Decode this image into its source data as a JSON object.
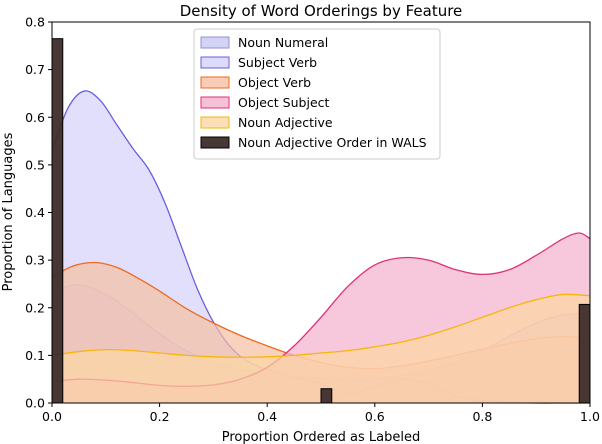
{
  "chart_data": {
    "type": "area",
    "title": "Density of Word Orderings by Feature",
    "xlabel": "Proportion Ordered as Labeled",
    "ylabel": "Proportion of Languages",
    "xlim": [
      0,
      1
    ],
    "ylim": [
      0,
      0.8
    ],
    "xticks": [
      "0.0",
      "0.2",
      "0.4",
      "0.6",
      "0.8",
      "1.0"
    ],
    "yticks": [
      "0.0",
      "0.1",
      "0.2",
      "0.3",
      "0.4",
      "0.5",
      "0.6",
      "0.7",
      "0.8"
    ],
    "grid": false,
    "legend_position": "top-center",
    "series": [
      {
        "name": "Noun Numeral",
        "kind": "density",
        "fill": "#c8c8f4",
        "stroke": "#9a8fd0",
        "x": [
          0,
          0.05,
          0.1,
          0.15,
          0.2,
          0.25,
          0.3,
          0.35,
          0.4,
          0.45,
          0.5,
          0.55,
          0.6,
          0.65,
          0.7,
          0.75,
          0.8,
          0.85,
          0.9,
          0.95,
          1.0
        ],
        "y": [
          0.235,
          0.248,
          0.228,
          0.19,
          0.145,
          0.11,
          0.085,
          0.07,
          0.06,
          0.055,
          0.052,
          0.05,
          0.052,
          0.058,
          0.068,
          0.085,
          0.11,
          0.14,
          0.168,
          0.185,
          0.188
        ]
      },
      {
        "name": "Subject Verb",
        "kind": "density",
        "fill": "#d4d2fb",
        "stroke": "#6a5fe0",
        "x": [
          0,
          0.03,
          0.06,
          0.09,
          0.12,
          0.15,
          0.18,
          0.21,
          0.24,
          0.27,
          0.3,
          0.33,
          0.36,
          0.4,
          0.45,
          0.5,
          0.55,
          0.6,
          0.65,
          0.7,
          0.75,
          0.8,
          0.85,
          0.9,
          0.95,
          1.0
        ],
        "y": [
          0.53,
          0.62,
          0.655,
          0.635,
          0.585,
          0.535,
          0.49,
          0.42,
          0.33,
          0.24,
          0.17,
          0.12,
          0.09,
          0.07,
          0.055,
          0.04,
          0.02,
          0.035,
          0.05,
          0.04,
          0.015,
          0.005,
          0.002,
          0.0,
          0.0,
          0.0
        ]
      },
      {
        "name": "Object Verb",
        "kind": "density",
        "fill": "#f7bfa2",
        "stroke": "#ee6a20",
        "x": [
          0,
          0.04,
          0.08,
          0.12,
          0.16,
          0.2,
          0.25,
          0.3,
          0.35,
          0.4,
          0.45,
          0.5,
          0.55,
          0.6,
          0.65,
          0.7,
          0.75,
          0.8,
          0.85,
          0.9,
          0.95,
          1.0
        ],
        "y": [
          0.265,
          0.288,
          0.295,
          0.285,
          0.262,
          0.235,
          0.198,
          0.168,
          0.142,
          0.12,
          0.1,
          0.085,
          0.075,
          0.072,
          0.078,
          0.088,
          0.1,
          0.113,
          0.125,
          0.135,
          0.14,
          0.135
        ]
      },
      {
        "name": "Object Subject",
        "kind": "density",
        "fill": "#f4b0cc",
        "stroke": "#e0307a",
        "x": [
          0,
          0.05,
          0.1,
          0.15,
          0.2,
          0.25,
          0.3,
          0.35,
          0.4,
          0.45,
          0.5,
          0.55,
          0.6,
          0.65,
          0.7,
          0.75,
          0.8,
          0.85,
          0.9,
          0.95,
          0.98,
          1.0
        ],
        "y": [
          0.045,
          0.05,
          0.048,
          0.043,
          0.037,
          0.035,
          0.038,
          0.05,
          0.075,
          0.12,
          0.18,
          0.245,
          0.29,
          0.305,
          0.3,
          0.28,
          0.27,
          0.28,
          0.31,
          0.345,
          0.357,
          0.345
        ]
      },
      {
        "name": "Noun Adjective",
        "kind": "density",
        "fill": "#fcd7a2",
        "stroke": "#f7b60c",
        "x": [
          0,
          0.05,
          0.1,
          0.15,
          0.2,
          0.25,
          0.3,
          0.35,
          0.4,
          0.45,
          0.5,
          0.55,
          0.6,
          0.65,
          0.7,
          0.75,
          0.8,
          0.85,
          0.9,
          0.95,
          1.0
        ],
        "y": [
          0.1,
          0.108,
          0.112,
          0.11,
          0.105,
          0.1,
          0.097,
          0.096,
          0.097,
          0.1,
          0.105,
          0.11,
          0.118,
          0.128,
          0.142,
          0.16,
          0.18,
          0.2,
          0.217,
          0.228,
          0.225
        ]
      },
      {
        "name": "Noun Adjective Order in WALS",
        "kind": "histogram",
        "fill": "#3d2d2a",
        "stroke": "#000000",
        "bars": [
          {
            "x0": 0.0,
            "x1": 0.02,
            "value": 0.765
          },
          {
            "x0": 0.5,
            "x1": 0.52,
            "value": 0.03
          },
          {
            "x0": 0.98,
            "x1": 1.0,
            "value": 0.207
          }
        ]
      }
    ]
  }
}
